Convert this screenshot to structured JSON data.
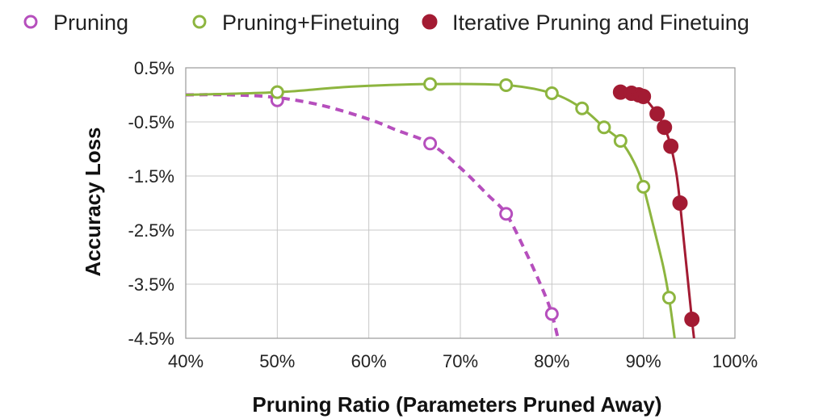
{
  "chart_data": {
    "type": "line",
    "xlabel": "Pruning Ratio (Parameters Pruned Away)",
    "ylabel": "Accuracy Loss",
    "xlim": [
      40,
      100
    ],
    "ylim": [
      -4.5,
      0.5
    ],
    "x_unit": "%",
    "y_unit": "%",
    "x_ticks": [
      "40%",
      "50%",
      "60%",
      "70%",
      "80%",
      "90%",
      "100%"
    ],
    "y_ticks": [
      "0.5%",
      "-0.5%",
      "-1.5%",
      "-2.5%",
      "-3.5%",
      "-4.5%"
    ],
    "x_tick_values": [
      40,
      50,
      60,
      70,
      80,
      90,
      100
    ],
    "y_tick_values": [
      0.5,
      -0.5,
      -1.5,
      -2.5,
      -3.5,
      -4.5
    ],
    "grid": true,
    "legend_position": "top",
    "series": [
      {
        "name": "Pruning",
        "color": "#b64fbd",
        "marker": "open-circle",
        "line_style": "dashed",
        "points": [
          [
            50,
            -0.1
          ],
          [
            66.7,
            -0.9
          ],
          [
            75,
            -2.2
          ],
          [
            80,
            -4.05
          ]
        ],
        "curve": [
          [
            40,
            0.0
          ],
          [
            45,
            0.0
          ],
          [
            50,
            -0.05
          ],
          [
            55,
            -0.2
          ],
          [
            60,
            -0.45
          ],
          [
            63,
            -0.65
          ],
          [
            66.7,
            -0.9
          ],
          [
            70,
            -1.35
          ],
          [
            73,
            -1.85
          ],
          [
            75,
            -2.2
          ],
          [
            77,
            -2.85
          ],
          [
            79,
            -3.6
          ],
          [
            80,
            -4.05
          ],
          [
            80.8,
            -4.6
          ]
        ]
      },
      {
        "name": "Pruning+Finetuing",
        "color": "#8db53f",
        "marker": "open-circle",
        "line_style": "solid",
        "points": [
          [
            50,
            0.05
          ],
          [
            66.7,
            0.2
          ],
          [
            75,
            0.18
          ],
          [
            80,
            0.03
          ],
          [
            83.3,
            -0.25
          ],
          [
            85.7,
            -0.6
          ],
          [
            87.5,
            -0.85
          ],
          [
            90,
            -1.7
          ],
          [
            92.8,
            -3.75
          ]
        ],
        "curve": [
          [
            40,
            0.0
          ],
          [
            50,
            0.05
          ],
          [
            58,
            0.15
          ],
          [
            66.7,
            0.2
          ],
          [
            75,
            0.18
          ],
          [
            80,
            0.03
          ],
          [
            83.3,
            -0.25
          ],
          [
            85.7,
            -0.6
          ],
          [
            87.5,
            -0.85
          ],
          [
            89,
            -1.25
          ],
          [
            90,
            -1.7
          ],
          [
            91.2,
            -2.5
          ],
          [
            92.2,
            -3.2
          ],
          [
            92.8,
            -3.75
          ],
          [
            93.5,
            -4.6
          ]
        ]
      },
      {
        "name": "Iterative Pruning and Finetuing",
        "color": "#a31b33",
        "marker": "filled-circle",
        "line_style": "solid",
        "points": [
          [
            87.5,
            0.05
          ],
          [
            88.7,
            0.03
          ],
          [
            89.5,
            0.0
          ],
          [
            90,
            -0.03
          ],
          [
            91.5,
            -0.35
          ],
          [
            92.3,
            -0.6
          ],
          [
            93,
            -0.95
          ],
          [
            94,
            -2.0
          ],
          [
            95.3,
            -4.15
          ]
        ],
        "curve": [
          [
            87.5,
            0.05
          ],
          [
            88.7,
            0.03
          ],
          [
            89.5,
            0.0
          ],
          [
            90,
            -0.03
          ],
          [
            91.5,
            -0.35
          ],
          [
            92.3,
            -0.6
          ],
          [
            93,
            -0.95
          ],
          [
            93.6,
            -1.45
          ],
          [
            94,
            -2.0
          ],
          [
            94.6,
            -3.0
          ],
          [
            95.3,
            -4.15
          ],
          [
            95.6,
            -4.6
          ]
        ]
      }
    ]
  }
}
